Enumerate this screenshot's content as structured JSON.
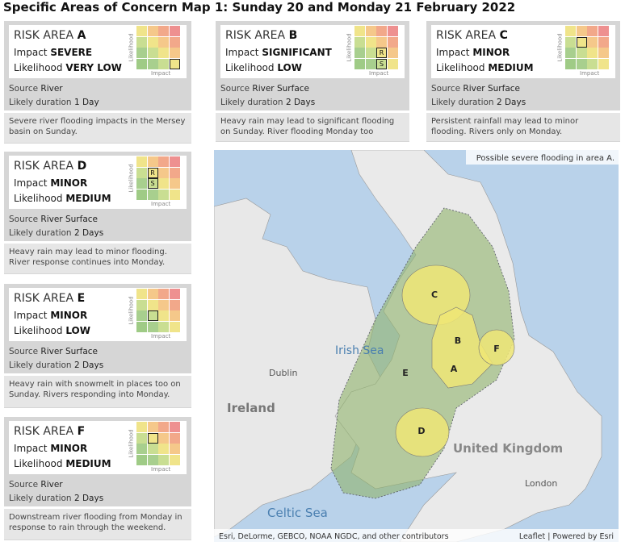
{
  "header": {
    "title": "Specific Areas of Concern Map 1: Sunday 20 and Monday 21 February 2022"
  },
  "labels": {
    "risk_area": "RISK AREA",
    "impact": "Impact",
    "likelihood": "Likelihood",
    "source": "Source",
    "duration": "Likely duration",
    "matrix_y": "Likelihood",
    "matrix_x": "Impact"
  },
  "areas": [
    {
      "letter": "A",
      "impact": "SEVERE",
      "likelihood": "VERY LOW",
      "sources": [
        "River"
      ],
      "duration": "1 Day",
      "description": "Severe river flooding impacts in the Mersey basin on Sunday.",
      "markers": [
        {
          "impact": 4,
          "likelihood": 1
        }
      ]
    },
    {
      "letter": "B",
      "impact": "SIGNIFICANT",
      "likelihood": "LOW",
      "sources": [
        "River",
        "Surface"
      ],
      "duration": "2 Days",
      "description": "Heavy rain may lead to significant flooding on Sunday. River flooding Monday too",
      "markers": [
        {
          "impact": 3,
          "likelihood": 2,
          "label": "R"
        },
        {
          "impact": 3,
          "likelihood": 1,
          "label": "S"
        }
      ]
    },
    {
      "letter": "C",
      "impact": "MINOR",
      "likelihood": "MEDIUM",
      "sources": [
        "River",
        "Surface"
      ],
      "duration": "2 Days",
      "description": "Persistent rainfall may lead to minor flooding. Rivers only on Monday.",
      "markers": [
        {
          "impact": 2,
          "likelihood": 3
        }
      ]
    },
    {
      "letter": "D",
      "impact": "MINOR",
      "likelihood": "MEDIUM",
      "sources": [
        "River",
        "Surface"
      ],
      "duration": "2 Days",
      "description": "Heavy rain may lead to minor flooding. River response continues into Monday.",
      "markers": [
        {
          "impact": 2,
          "likelihood": 3,
          "label": "R"
        },
        {
          "impact": 2,
          "likelihood": 2,
          "label": "S"
        }
      ]
    },
    {
      "letter": "E",
      "impact": "MINOR",
      "likelihood": "LOW",
      "sources": [
        "River",
        "Surface"
      ],
      "duration": "2 Days",
      "description": "Heavy rain with snowmelt in places too on Sunday. Rivers responding into Monday.",
      "markers": [
        {
          "impact": 2,
          "likelihood": 2
        }
      ]
    },
    {
      "letter": "F",
      "impact": "MINOR",
      "likelihood": "MEDIUM",
      "sources": [
        "River"
      ],
      "duration": "2 Days",
      "description": "Downstream river flooding from Monday in response to rain through the weekend.",
      "markers": [
        {
          "impact": 2,
          "likelihood": 3
        }
      ]
    }
  ],
  "map": {
    "note": "Possible severe flooding in area A.",
    "irish_sea": "Irish Sea",
    "dublin": "Dublin",
    "ireland": "Ireland",
    "celtic_sea": "Celtic Sea",
    "united_kingdom": "United Kingdom",
    "london": "London",
    "area_labels": [
      "A",
      "B",
      "C",
      "D",
      "E",
      "F"
    ],
    "attribution": "Esri, DeLorme, GEBCO, NOAA NGDC, and other contributors",
    "credit": "Leaflet | Powered by Esri"
  }
}
